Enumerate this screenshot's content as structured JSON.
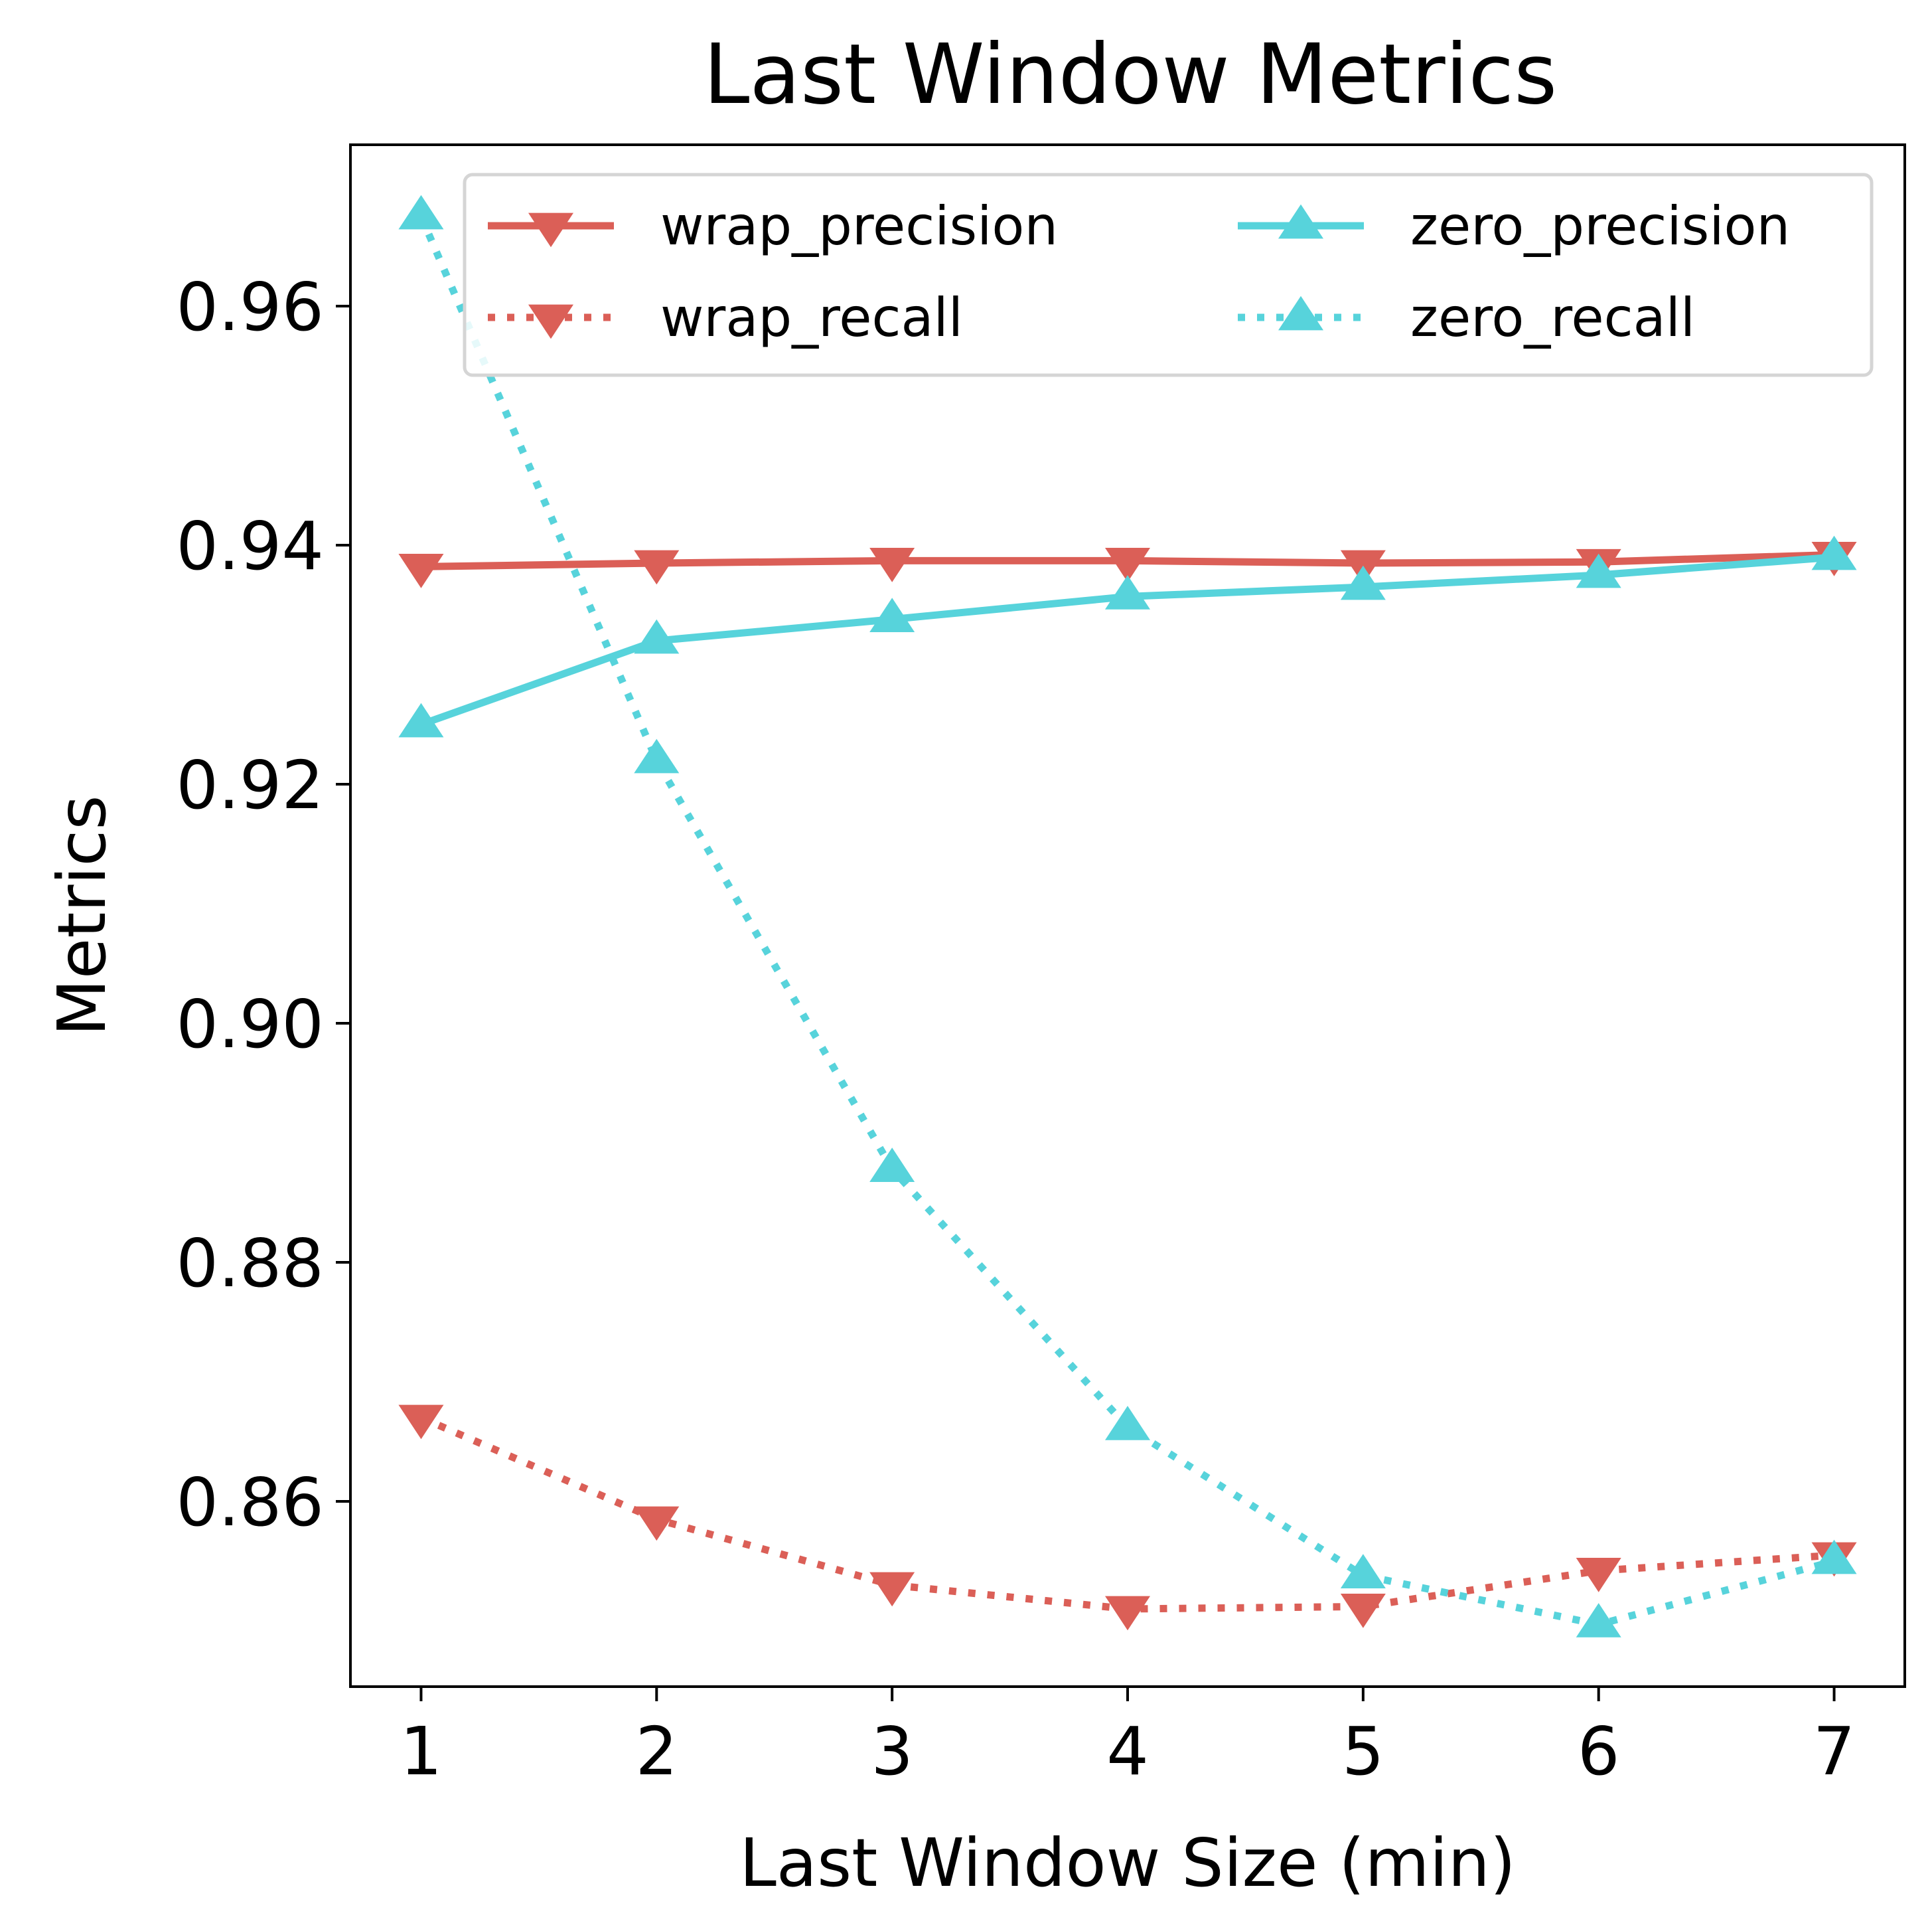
{
  "chart_data": {
    "type": "line",
    "title": "Last Window Metrics",
    "xlabel": "Last Window Size (min)",
    "ylabel": "Metrics",
    "x": [
      1,
      2,
      3,
      4,
      5,
      6,
      7
    ],
    "xlim": [
      0.7,
      7.3
    ],
    "ylim": [
      0.8445,
      0.9735
    ],
    "x_ticks": [
      1,
      2,
      3,
      4,
      5,
      6,
      7
    ],
    "y_ticks": [
      0.86,
      0.88,
      0.9,
      0.92,
      0.94,
      0.96
    ],
    "x_tick_labels": [
      "1",
      "2",
      "3",
      "4",
      "5",
      "6",
      "7"
    ],
    "y_tick_labels": [
      "0.86",
      "0.88",
      "0.90",
      "0.92",
      "0.94",
      "0.96"
    ],
    "grid": false,
    "legend_position": "top-right",
    "legend_columns": 2,
    "series": [
      {
        "name": "wrap_precision",
        "values": [
          0.9382,
          0.9385,
          0.9387,
          0.9387,
          0.9385,
          0.9386,
          0.9392
        ],
        "color": "#db5f57",
        "line_style": "solid",
        "marker": "triangle-down"
      },
      {
        "name": "wrap_recall",
        "values": [
          0.867,
          0.8585,
          0.853,
          0.851,
          0.8512,
          0.8542,
          0.8555
        ],
        "color": "#db5f57",
        "line_style": "dotted",
        "marker": "triangle-down"
      },
      {
        "name": "zero_precision",
        "values": [
          0.925,
          0.932,
          0.9338,
          0.9357,
          0.9365,
          0.9375,
          0.939
        ],
        "color": "#57d3db",
        "line_style": "solid",
        "marker": "triangle-up"
      },
      {
        "name": "zero_recall",
        "values": [
          0.9675,
          0.922,
          0.8878,
          0.8662,
          0.8538,
          0.8497,
          0.855
        ],
        "color": "#57d3db",
        "line_style": "dotted",
        "marker": "triangle-up"
      }
    ]
  }
}
